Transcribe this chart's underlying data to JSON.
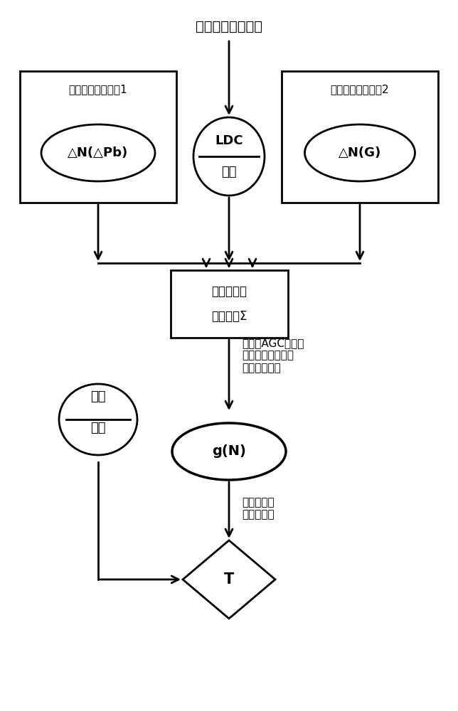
{
  "title_text": "调度给定负荷指令",
  "box1_label": "功率控制加法模块1",
  "box1_ellipse": "△N(△Pb)",
  "ldc_top": "LDC",
  "ldc_bot": "输出",
  "box2_label": "功率控制加法模块2",
  "box2_ellipse": "△N(G)",
  "sum_box_line1": "功率控制加",
  "sum_box_line2": "法总模块Σ",
  "annotation1": "取代原AGC指令作\n为新负荷指令进行\n主汽压力设定",
  "gN_label": "g(N)",
  "annotation2": "主汽压力逻\n辑设置模块",
  "T_label": "T",
  "steam_line1": "主汽",
  "steam_line2": "压力",
  "bg_color": "#ffffff",
  "line_color": "#000000",
  "text_color": "#000000"
}
